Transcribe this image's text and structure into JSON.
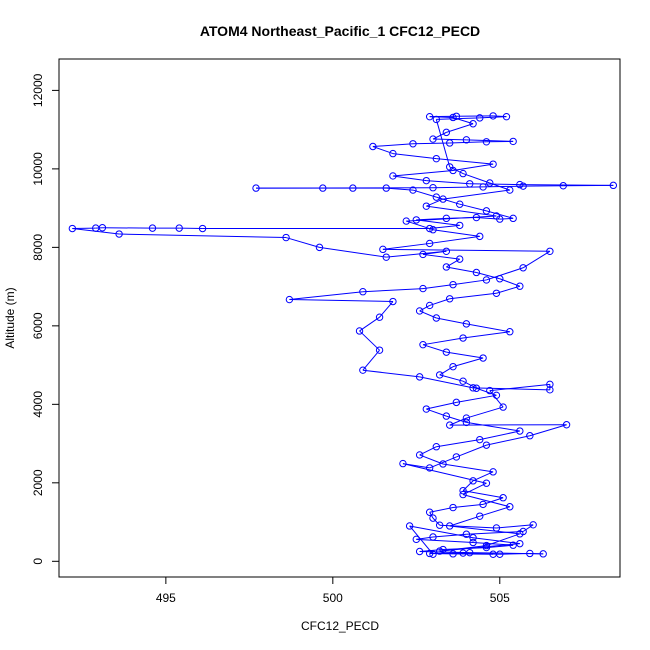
{
  "chart_data": {
    "type": "line",
    "title": "ATOM4 Northeast_Pacific_1 CFC12_PECD",
    "xlabel": "CFC12_PECD",
    "ylabel": "Altitude (m)",
    "xlim": [
      491.8,
      508.6
    ],
    "ylim": [
      -400,
      12800
    ],
    "xticks": [
      495,
      500,
      505
    ],
    "yticks": [
      0,
      2000,
      4000,
      6000,
      8000,
      10000,
      12000
    ],
    "grid": false,
    "colors": {
      "series": "#0000ff",
      "axis": "#000000"
    },
    "series": [
      {
        "points": [
          [
            504.8,
            180
          ],
          [
            503.6,
            190
          ],
          [
            502.9,
            200
          ],
          [
            503.9,
            210
          ],
          [
            505.0,
            180
          ],
          [
            505.9,
            200
          ],
          [
            506.3,
            190
          ],
          [
            504.1,
            220
          ],
          [
            502.6,
            250
          ],
          [
            503.3,
            300
          ],
          [
            504.6,
            350
          ],
          [
            505.4,
            410
          ],
          [
            504.2,
            480
          ],
          [
            502.5,
            560
          ],
          [
            503.0,
            620
          ],
          [
            504.0,
            690
          ],
          [
            505.7,
            760
          ],
          [
            506.0,
            930
          ],
          [
            504.9,
            850
          ],
          [
            503.2,
            920
          ],
          [
            503.0,
            1100
          ],
          [
            502.9,
            1250
          ],
          [
            503.6,
            1370
          ],
          [
            504.5,
            1450
          ],
          [
            505.1,
            1620
          ],
          [
            503.9,
            1800
          ],
          [
            504.2,
            2050
          ],
          [
            504.8,
            2280
          ],
          [
            503.3,
            2480
          ],
          [
            502.6,
            2710
          ],
          [
            503.1,
            2920
          ],
          [
            504.4,
            3100
          ],
          [
            505.6,
            3320
          ],
          [
            504.0,
            3540
          ],
          [
            503.4,
            3700
          ],
          [
            502.8,
            3880
          ],
          [
            503.7,
            4050
          ],
          [
            504.9,
            4230
          ],
          [
            504.3,
            4410
          ],
          [
            503.9,
            4590
          ],
          [
            503.2,
            4750
          ],
          [
            503.6,
            4960
          ],
          [
            504.5,
            5180
          ],
          [
            503.4,
            5330
          ],
          [
            502.7,
            5520
          ],
          [
            503.9,
            5690
          ],
          [
            505.3,
            5850
          ],
          [
            504.0,
            6050
          ],
          [
            503.1,
            6200
          ],
          [
            502.6,
            6380
          ],
          [
            502.9,
            6520
          ],
          [
            503.5,
            6690
          ],
          [
            504.9,
            6830
          ],
          [
            505.6,
            7010
          ],
          [
            505.0,
            7200
          ],
          [
            504.3,
            7360
          ],
          [
            503.4,
            7500
          ],
          [
            503.8,
            7700
          ],
          [
            502.7,
            7820
          ],
          [
            503.4,
            7900
          ],
          [
            501.6,
            7750
          ],
          [
            499.6,
            8000
          ],
          [
            498.6,
            8250
          ],
          [
            493.6,
            8340
          ],
          [
            492.2,
            8480
          ],
          [
            492.9,
            8490
          ],
          [
            493.1,
            8500
          ],
          [
            494.6,
            8490
          ],
          [
            495.4,
            8490
          ],
          [
            496.1,
            8480
          ],
          [
            502.9,
            8480
          ],
          [
            503.8,
            8560
          ],
          [
            502.5,
            8700
          ],
          [
            503.4,
            8740
          ],
          [
            504.3,
            8760
          ],
          [
            505.0,
            8720
          ],
          [
            505.4,
            8740
          ],
          [
            504.6,
            8930
          ],
          [
            503.8,
            9100
          ],
          [
            503.1,
            9280
          ],
          [
            502.4,
            9460
          ],
          [
            501.6,
            9510
          ],
          [
            500.6,
            9510
          ],
          [
            499.7,
            9510
          ],
          [
            497.7,
            9510
          ],
          [
            503.0,
            9520
          ],
          [
            504.5,
            9540
          ],
          [
            505.7,
            9560
          ],
          [
            506.9,
            9570
          ],
          [
            508.4,
            9580
          ],
          [
            505.6,
            9600
          ],
          [
            504.1,
            9620
          ],
          [
            502.8,
            9700
          ],
          [
            501.8,
            9820
          ],
          [
            503.6,
            9960
          ],
          [
            504.8,
            10120
          ],
          [
            503.1,
            10260
          ],
          [
            501.8,
            10390
          ],
          [
            501.2,
            10570
          ],
          [
            502.4,
            10640
          ],
          [
            503.5,
            10660
          ],
          [
            504.6,
            10690
          ],
          [
            505.4,
            10700
          ],
          [
            504.0,
            10740
          ],
          [
            503.0,
            10760
          ],
          [
            503.4,
            10930
          ],
          [
            504.2,
            11150
          ],
          [
            503.6,
            11310
          ],
          [
            502.9,
            11330
          ],
          [
            503.7,
            11340
          ],
          [
            504.8,
            11350
          ],
          [
            505.2,
            11330
          ],
          [
            504.4,
            11300
          ],
          [
            503.1,
            11260
          ],
          [
            503.5,
            10050
          ],
          [
            503.9,
            9880
          ],
          [
            504.7,
            9640
          ],
          [
            505.3,
            9460
          ],
          [
            503.3,
            9230
          ],
          [
            502.8,
            9050
          ],
          [
            504.9,
            8800
          ],
          [
            502.2,
            8670
          ],
          [
            503.0,
            8450
          ],
          [
            504.4,
            8280
          ],
          [
            502.9,
            8100
          ],
          [
            501.5,
            7950
          ],
          [
            506.5,
            7900
          ],
          [
            505.7,
            7480
          ],
          [
            504.6,
            7170
          ],
          [
            503.6,
            7050
          ],
          [
            502.7,
            6950
          ],
          [
            500.9,
            6870
          ],
          [
            498.7,
            6670
          ],
          [
            501.8,
            6620
          ],
          [
            501.4,
            6220
          ],
          [
            500.8,
            5870
          ],
          [
            501.4,
            5380
          ],
          [
            500.9,
            4870
          ],
          [
            502.6,
            4700
          ],
          [
            504.2,
            4420
          ],
          [
            506.5,
            4370
          ],
          [
            506.5,
            4510
          ],
          [
            504.7,
            4350
          ],
          [
            505.1,
            3930
          ],
          [
            504.0,
            3650
          ],
          [
            503.5,
            3470
          ],
          [
            507.0,
            3480
          ],
          [
            505.9,
            3200
          ],
          [
            504.6,
            2960
          ],
          [
            503.7,
            2660
          ],
          [
            502.9,
            2380
          ],
          [
            502.1,
            2490
          ],
          [
            504.6,
            1990
          ],
          [
            503.9,
            1700
          ],
          [
            505.3,
            1390
          ],
          [
            504.4,
            1150
          ],
          [
            503.5,
            900
          ],
          [
            505.6,
            700
          ],
          [
            504.6,
            400
          ],
          [
            503.2,
            260
          ],
          [
            505.6,
            450
          ],
          [
            504.2,
            600
          ],
          [
            502.3,
            900
          ],
          [
            503.0,
            180
          ]
        ]
      }
    ]
  }
}
